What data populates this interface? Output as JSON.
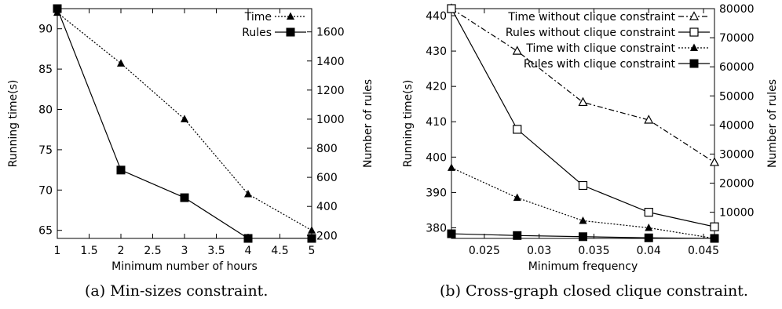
{
  "chart_data": [
    {
      "type": "line",
      "caption": "(a) Min-sizes constraint.",
      "xlabel": "Minimum number of hours",
      "ylabel": "Running time(s)",
      "y2label": "Number of rules",
      "xlim": [
        1,
        5
      ],
      "ylim": [
        64,
        92.5
      ],
      "y2lim": [
        180,
        1760
      ],
      "x_ticks": [
        1,
        1.5,
        2,
        2.5,
        3,
        3.5,
        4,
        4.5,
        5
      ],
      "x_tick_labels": [
        "1",
        "1.5",
        "2",
        "2.5",
        "3",
        "3.5",
        "4",
        "4.5",
        "5"
      ],
      "y_ticks": [
        65,
        70,
        75,
        80,
        85,
        90
      ],
      "y2_ticks": [
        200,
        400,
        600,
        800,
        1000,
        1200,
        1400,
        1600
      ],
      "grid": false,
      "legend": "top-right",
      "series": [
        {
          "name": "Time",
          "axis": "left",
          "style": "dotted",
          "marker": "filled-triangle",
          "x": [
            1,
            2,
            3,
            4,
            5
          ],
          "values": [
            92,
            85.7,
            78.8,
            69.5,
            65
          ]
        },
        {
          "name": "Rules",
          "axis": "right",
          "style": "solid",
          "marker": "filled-square",
          "x": [
            1,
            2,
            3,
            4,
            5
          ],
          "values": [
            1760,
            650,
            460,
            180,
            180
          ]
        }
      ]
    },
    {
      "type": "line",
      "caption": "(b) Cross-graph closed clique constraint.",
      "xlabel": "Minimum frequency",
      "ylabel": "Running time(s)",
      "y2label": "Number of rules",
      "xlim": [
        0.022,
        0.046
      ],
      "ylim": [
        377,
        442
      ],
      "y2lim": [
        1000,
        80000
      ],
      "x_ticks": [
        0.025,
        0.03,
        0.035,
        0.04,
        0.045
      ],
      "x_tick_labels": [
        "0.025",
        "0.03",
        "0.035",
        "0.04",
        "0.045"
      ],
      "y_ticks": [
        380,
        390,
        400,
        410,
        420,
        430,
        440
      ],
      "y2_ticks": [
        10000,
        20000,
        30000,
        40000,
        50000,
        60000,
        70000,
        80000
      ],
      "grid": false,
      "legend": "top-right",
      "series": [
        {
          "name": "Time without clique constraint",
          "axis": "left",
          "style": "dash-dot",
          "marker": "open-triangle",
          "x": [
            0.022,
            0.028,
            0.034,
            0.04,
            0.046
          ],
          "values": [
            442,
            430,
            415.5,
            410.5,
            398.5
          ]
        },
        {
          "name": "Rules without clique constraint",
          "axis": "right",
          "style": "solid",
          "marker": "open-square",
          "x": [
            0.022,
            0.028,
            0.034,
            0.04,
            0.046
          ],
          "values": [
            80000,
            38500,
            19200,
            10000,
            5000
          ]
        },
        {
          "name": "Time with clique constraint",
          "axis": "left",
          "style": "dotted",
          "marker": "filled-triangle",
          "x": [
            0.022,
            0.028,
            0.034,
            0.04,
            0.046
          ],
          "values": [
            397,
            388.5,
            382,
            380,
            377
          ]
        },
        {
          "name": "Rules with clique constraint",
          "axis": "right",
          "style": "solid",
          "marker": "filled-square",
          "x": [
            0.022,
            0.028,
            0.034,
            0.04,
            0.046
          ],
          "values": [
            2600,
            2000,
            1600,
            1200,
            1000
          ]
        }
      ]
    }
  ]
}
